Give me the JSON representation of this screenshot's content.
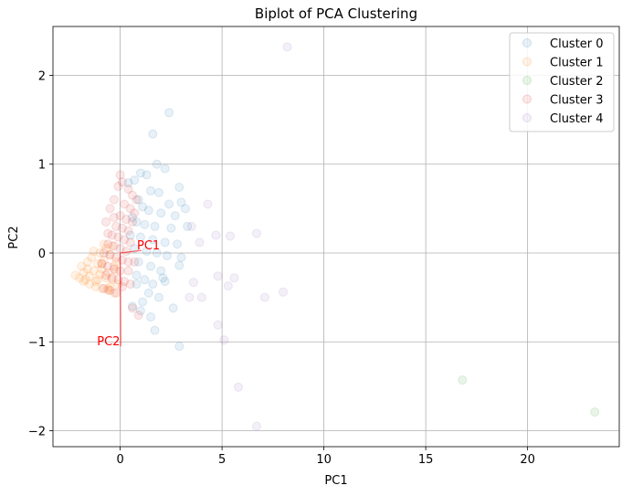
{
  "chart_data": {
    "type": "scatter",
    "title": "Biplot of PCA Clustering",
    "xlabel": "PC1",
    "ylabel": "PC2",
    "xlim": [
      -3.3,
      24.5
    ],
    "ylim": [
      -2.18,
      2.55
    ],
    "xticks": [
      0,
      5,
      10,
      15,
      20
    ],
    "yticks": [
      -2,
      -1,
      0,
      1,
      2
    ],
    "grid": true,
    "legend_position": "top-right",
    "series": [
      {
        "name": "Cluster 0",
        "color": "#1f77b4",
        "x": [
          2.4,
          1.6,
          1.8,
          2.2,
          1.0,
          1.3,
          0.7,
          0.4,
          1.5,
          1.9,
          2.9,
          3.0,
          2.4,
          0.9,
          1.1,
          1.4,
          2.0,
          2.7,
          3.2,
          0.6,
          0.8,
          1.2,
          1.7,
          2.5,
          3.3,
          0.5,
          1.0,
          1.6,
          2.2,
          2.8,
          0.7,
          1.3,
          1.8,
          2.3,
          3.0,
          0.9,
          1.5,
          2.0,
          2.9,
          0.8,
          1.2,
          1.6,
          2.1,
          1.4,
          1.9,
          1.1,
          0.6,
          1.0,
          1.5,
          2.6,
          2.9,
          1.7,
          2.2,
          0.8
        ],
        "y": [
          1.58,
          1.34,
          1.0,
          0.95,
          0.9,
          0.88,
          0.82,
          0.79,
          0.7,
          0.68,
          0.74,
          0.57,
          0.55,
          0.6,
          0.52,
          0.48,
          0.45,
          0.42,
          0.5,
          0.4,
          0.35,
          0.32,
          0.3,
          0.28,
          0.3,
          0.2,
          0.18,
          0.15,
          0.12,
          0.1,
          0.05,
          0.02,
          0.0,
          -0.03,
          -0.05,
          -0.1,
          -0.15,
          -0.2,
          -0.14,
          -0.25,
          -0.3,
          -0.35,
          -0.28,
          -0.45,
          -0.5,
          -0.55,
          -0.6,
          -0.65,
          -0.72,
          -0.62,
          -1.05,
          -0.87,
          -0.32,
          -0.35
        ]
      },
      {
        "name": "Cluster 1",
        "color": "#ff7f0e",
        "x": [
          -2.2,
          -2.0,
          -1.8,
          -1.7,
          -1.5,
          -1.3,
          -1.2,
          -1.0,
          -0.9,
          -0.7,
          -0.6,
          -0.4,
          -0.3,
          -0.1,
          -1.9,
          -1.6,
          -1.4,
          -1.1,
          -0.8,
          -0.5,
          -0.2,
          -1.8,
          -1.5,
          -1.2,
          -0.9,
          -0.6,
          -0.3,
          -1.0,
          -0.7,
          -0.4,
          -1.3,
          -0.8,
          -0.5,
          -1.6,
          -1.1,
          -0.2,
          -0.6,
          -0.9
        ],
        "y": [
          -0.25,
          -0.28,
          -0.22,
          -0.3,
          -0.26,
          -0.2,
          -0.32,
          -0.24,
          -0.18,
          -0.28,
          -0.22,
          -0.3,
          -0.15,
          -0.35,
          -0.15,
          -0.1,
          -0.05,
          -0.12,
          -0.08,
          -0.02,
          -0.1,
          -0.32,
          -0.35,
          -0.38,
          -0.4,
          -0.42,
          -0.45,
          0.0,
          0.05,
          0.08,
          0.02,
          0.1,
          -0.38,
          -0.18,
          -0.3,
          -0.2,
          -0.4,
          -0.12
        ]
      },
      {
        "name": "Cluster 2",
        "color": "#2ca02c",
        "x": [
          16.8,
          23.3
        ],
        "y": [
          -1.43,
          -1.79
        ]
      },
      {
        "name": "Cluster 3",
        "color": "#d62728",
        "x": [
          0.0,
          0.1,
          0.4,
          0.6,
          0.8,
          -0.1,
          0.2,
          0.5,
          0.7,
          -0.3,
          0.0,
          0.3,
          0.6,
          -0.5,
          -0.2,
          0.1,
          0.4,
          -0.7,
          -0.4,
          -0.1,
          0.2,
          0.5,
          -0.6,
          -0.3,
          0.0,
          0.3,
          -0.8,
          -0.5,
          -0.2,
          0.1,
          0.4,
          -0.9,
          -0.6,
          -0.3,
          0.0,
          -0.7,
          -0.4,
          -0.1,
          0.2,
          0.5,
          -0.8,
          -0.5,
          -0.2,
          0.1,
          0.4,
          0.7,
          -0.6,
          -0.3,
          0.6,
          0.9
        ],
        "y": [
          0.88,
          0.8,
          0.72,
          0.65,
          0.6,
          0.75,
          0.55,
          0.5,
          0.45,
          0.6,
          0.42,
          0.38,
          0.35,
          0.5,
          0.3,
          0.28,
          0.25,
          0.35,
          0.2,
          0.18,
          0.15,
          0.12,
          0.1,
          0.08,
          0.05,
          0.02,
          0.0,
          -0.02,
          -0.05,
          -0.08,
          -0.1,
          -0.12,
          -0.15,
          -0.18,
          -0.2,
          -0.25,
          -0.28,
          -0.3,
          -0.32,
          -0.35,
          -0.4,
          -0.42,
          -0.45,
          -0.38,
          -0.2,
          -0.1,
          0.22,
          0.4,
          -0.62,
          -0.7
        ]
      },
      {
        "name": "Cluster 4",
        "color": "#9467bd",
        "x": [
          8.2,
          4.3,
          3.5,
          4.7,
          5.4,
          6.7,
          3.9,
          3.6,
          3.4,
          4.0,
          4.8,
          5.6,
          5.3,
          7.1,
          8.0,
          4.8,
          5.1,
          5.8,
          6.7
        ],
        "y": [
          2.32,
          0.55,
          0.3,
          0.2,
          0.19,
          0.22,
          0.12,
          -0.33,
          -0.5,
          -0.5,
          -0.26,
          -0.28,
          -0.37,
          -0.5,
          -0.44,
          -0.81,
          -0.98,
          -1.51,
          -1.95
        ]
      }
    ],
    "loadings": [
      {
        "label": "PC1",
        "x": 1.05,
        "y": 0.03,
        "color": "#ff0000"
      },
      {
        "label": "PC2",
        "x": 0.03,
        "y": -1.05,
        "color": "#ff0000"
      }
    ]
  }
}
